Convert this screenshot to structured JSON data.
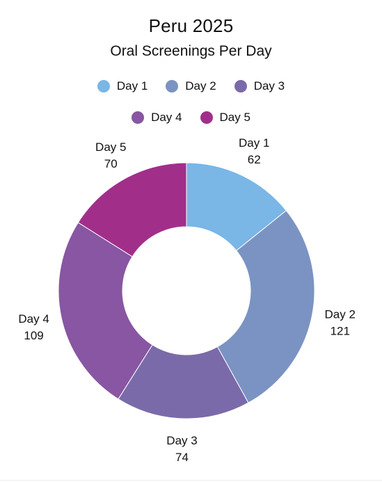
{
  "chart_data": {
    "type": "pie",
    "donut": true,
    "title": "Peru 2025",
    "subtitle": "Oral Screenings Per Day",
    "legend_position": "top",
    "categories": [
      "Day 1",
      "Day 2",
      "Day 3",
      "Day 4",
      "Day 5"
    ],
    "values": [
      62,
      121,
      74,
      109,
      70
    ],
    "colors": [
      "#7ab6e6",
      "#7b93c3",
      "#7b6aa9",
      "#8856a2",
      "#a12f8a"
    ]
  }
}
